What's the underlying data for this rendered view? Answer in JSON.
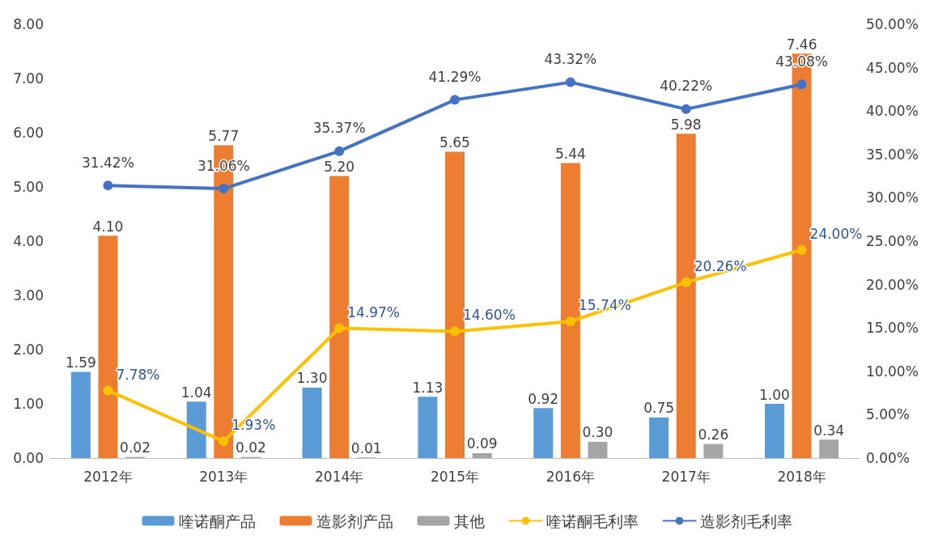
{
  "chart_data": {
    "type": "bar",
    "categories": [
      "2012年",
      "2013年",
      "2014年",
      "2015年",
      "2016年",
      "2017年",
      "2018年"
    ],
    "series": [
      {
        "name": "喹诺酮产品",
        "color": "#5b9bd5",
        "values": [
          1.59,
          1.04,
          1.3,
          1.13,
          0.92,
          0.75,
          1.0
        ],
        "value_labels": [
          "1.59",
          "1.04",
          "1.30",
          "1.13",
          "0.92",
          "0.75",
          "1.00"
        ]
      },
      {
        "name": "造影剂产品",
        "color": "#ed7d31",
        "values": [
          4.1,
          5.77,
          5.2,
          5.65,
          5.44,
          5.98,
          7.46
        ],
        "value_labels": [
          "4.10",
          "5.77",
          "5.20",
          "5.65",
          "5.44",
          "5.98",
          "7.46"
        ]
      },
      {
        "name": "其他",
        "color": "#a5a5a5",
        "values": [
          0.02,
          0.02,
          0.01,
          0.09,
          0.3,
          0.26,
          0.34
        ],
        "value_labels": [
          "0.02",
          "0.02",
          "0.01",
          "0.09",
          "0.30",
          "0.26",
          "0.34"
        ]
      },
      {
        "name": "喹诺酮毛利率",
        "type": "line",
        "axis": "y2",
        "color": "#ffc000",
        "values": [
          7.78,
          1.93,
          14.97,
          14.6,
          15.74,
          20.26,
          24.0
        ],
        "value_labels": [
          "7.78%",
          "1.93%",
          "14.97%",
          "14.60%",
          "15.74%",
          "20.26%",
          "24.00%"
        ]
      },
      {
        "name": "造影剂毛利率",
        "type": "line",
        "axis": "y2",
        "color": "#4472c4",
        "values": [
          31.42,
          31.06,
          35.37,
          41.29,
          43.32,
          40.22,
          43.08
        ],
        "value_labels": [
          "31.42%",
          "31.06%",
          "35.37%",
          "41.29%",
          "43.32%",
          "40.22%",
          "43.08%"
        ]
      }
    ],
    "ylim": [
      0,
      8
    ],
    "yticks": [
      {
        "value": 0,
        "label": "0.00"
      },
      {
        "value": 1,
        "label": "1.00"
      },
      {
        "value": 2,
        "label": "2.00"
      },
      {
        "value": 3,
        "label": "3.00"
      },
      {
        "value": 4,
        "label": "4.00"
      },
      {
        "value": 5,
        "label": "5.00"
      },
      {
        "value": 6,
        "label": "6.00"
      },
      {
        "value": 7,
        "label": "7.00"
      },
      {
        "value": 8,
        "label": "8.00"
      }
    ],
    "y2lim": [
      0,
      50
    ],
    "y2ticks": [
      {
        "value": 0,
        "label": "0.00%"
      },
      {
        "value": 5,
        "label": "5.00%"
      },
      {
        "value": 10,
        "label": "10.00%"
      },
      {
        "value": 15,
        "label": "15.00%"
      },
      {
        "value": 20,
        "label": "20.00%"
      },
      {
        "value": 25,
        "label": "25.00%"
      },
      {
        "value": 30,
        "label": "30.00%"
      },
      {
        "value": 35,
        "label": "35.00%"
      },
      {
        "value": 40,
        "label": "40.00%"
      },
      {
        "value": 45,
        "label": "45.00%"
      },
      {
        "value": 50,
        "label": "50.00%"
      }
    ],
    "legend": "bottom",
    "marker": "circle",
    "line_style": "solid"
  }
}
